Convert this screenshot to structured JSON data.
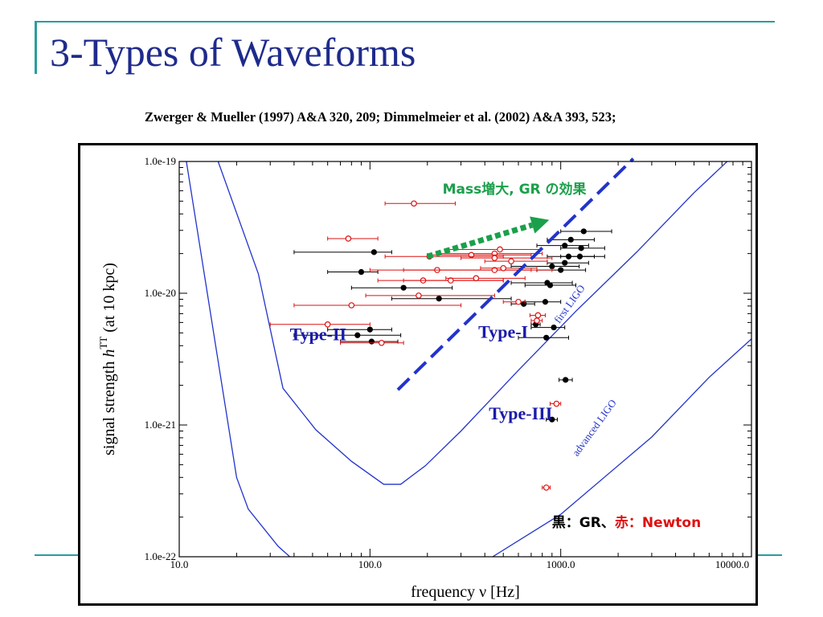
{
  "slide": {
    "title": "3-Types of Waveforms",
    "citation": "Zwerger & Mueller (1997) A&A 320, 209;   Dimmelmeier et al. (2002) A&A 393, 523;",
    "title_color": "#1e2b8c",
    "rule_color": "#2a9d9d"
  },
  "chart_data": {
    "type": "scatter",
    "xlabel": "frequency ν [Hz]",
    "ylabel_prefix": "signal strength ",
    "ylabel_var": "h",
    "ylabel_sup": "TT",
    "ylabel_suffix": " (at 10 kpc)",
    "xscale": "log",
    "yscale": "log",
    "xlim": [
      10,
      10000
    ],
    "ylim": [
      1e-22,
      1e-19
    ],
    "xticks": [
      {
        "value": 10,
        "label": "10.0"
      },
      {
        "value": 100,
        "label": "100.0"
      },
      {
        "value": 1000,
        "label": "1000.0"
      },
      {
        "value": 10000,
        "label": "10000.0"
      }
    ],
    "yticks": [
      {
        "value": 1e-22,
        "label": "1.0e-22"
      },
      {
        "value": 1e-21,
        "label": "1.0e-21"
      },
      {
        "value": 1e-20,
        "label": "1.0e-20"
      },
      {
        "value": 1e-19,
        "label": "1.0e-19"
      }
    ],
    "grid": false,
    "colors": {
      "gr": "#000000",
      "newton": "#dd1111",
      "curve": "#2233cc",
      "annotation": "#1a1aaa",
      "mass_arrow": "#1aa04a"
    },
    "curves": [
      {
        "name": "first LIGO",
        "points": [
          [
            16,
            1e-19
          ],
          [
            26,
            1.4e-20
          ],
          [
            35,
            1.9e-21
          ],
          [
            52,
            9.2e-22
          ],
          [
            80,
            5.3e-22
          ],
          [
            118,
            3.55e-22
          ],
          [
            145,
            3.55e-22
          ],
          [
            195,
            4.9e-22
          ],
          [
            300,
            9e-22
          ],
          [
            600,
            2.6e-21
          ],
          [
            1200,
            7.3e-21
          ],
          [
            2500,
            2.05e-20
          ],
          [
            5000,
            5.8e-20
          ],
          [
            8000,
            1.1e-19
          ]
        ]
      },
      {
        "name": "advanced LIGO",
        "points": [
          [
            10.9,
            1e-19
          ],
          [
            20,
            4e-22
          ],
          [
            23,
            2.3e-22
          ],
          [
            33,
            1.2e-22
          ],
          [
            38,
            1e-22
          ]
        ],
        "continuation": [
          [
            440,
            1e-22
          ],
          [
            1000,
            2.1e-22
          ],
          [
            3000,
            8.1e-22
          ],
          [
            6000,
            2.3e-21
          ],
          [
            10000,
            4.5e-21
          ]
        ]
      }
    ],
    "curve_labels": [
      {
        "text": "first LIGO",
        "x": 1150,
        "y": 8e-21,
        "angle": -54
      },
      {
        "text": "advanced LIGO",
        "x": 1550,
        "y": 9.2e-22,
        "angle": -54
      }
    ],
    "series": [
      {
        "name": "GR",
        "marker": "filled-circle",
        "points": [
          {
            "x": 1320,
            "y": 2.95e-20,
            "xlo": 1000,
            "xhi": 1850
          },
          {
            "x": 1130,
            "y": 2.55e-20,
            "xlo": 850,
            "xhi": 1500
          },
          {
            "x": 1280,
            "y": 2.2e-20,
            "xlo": 1000,
            "xhi": 1700
          },
          {
            "x": 1050,
            "y": 2.3e-20,
            "xlo": 750,
            "xhi": 1400
          },
          {
            "x": 1100,
            "y": 1.9e-20,
            "xlo": 850,
            "xhi": 1500
          },
          {
            "x": 1260,
            "y": 1.9e-20,
            "xlo": 1000,
            "xhi": 1700
          },
          {
            "x": 900,
            "y": 1.6e-20,
            "xlo": 550,
            "xhi": 1250
          },
          {
            "x": 1000,
            "y": 1.5e-20,
            "xlo": 750,
            "xhi": 1350
          },
          {
            "x": 1050,
            "y": 1.7e-20,
            "xlo": 850,
            "xhi": 1400
          },
          {
            "x": 105,
            "y": 2.05e-20,
            "xlo": 40,
            "xhi": 130
          },
          {
            "x": 90,
            "y": 1.45e-20,
            "xlo": 60,
            "xhi": 110
          },
          {
            "x": 150,
            "y": 1.1e-20,
            "xlo": 80,
            "xhi": 270
          },
          {
            "x": 850,
            "y": 1.2e-20,
            "xlo": 550,
            "xhi": 1150
          },
          {
            "x": 880,
            "y": 1.15e-20,
            "xlo": 650,
            "xhi": 1200
          },
          {
            "x": 230,
            "y": 9.1e-21,
            "xlo": 130,
            "xhi": 550
          },
          {
            "x": 640,
            "y": 8.3e-21,
            "xlo": 550,
            "xhi": 730
          },
          {
            "x": 830,
            "y": 8.6e-21,
            "xlo": 650,
            "xhi": 1000
          },
          {
            "x": 740,
            "y": 5.8e-21,
            "xlo": 700,
            "xhi": 780
          },
          {
            "x": 920,
            "y": 5.5e-21,
            "xlo": 700,
            "xhi": 1050
          },
          {
            "x": 100,
            "y": 5.3e-21,
            "xlo": 60,
            "xhi": 130
          },
          {
            "x": 86,
            "y": 4.8e-21,
            "xlo": 40,
            "xhi": 145
          },
          {
            "x": 102,
            "y": 4.3e-21,
            "xlo": 70,
            "xhi": 140
          },
          {
            "x": 840,
            "y": 4.6e-21,
            "xlo": 600,
            "xhi": 1100
          },
          {
            "x": 1060,
            "y": 2.2e-21,
            "xlo": 980,
            "xhi": 1150
          },
          {
            "x": 900,
            "y": 1.1e-21,
            "xlo": 840,
            "xhi": 960
          }
        ]
      },
      {
        "name": "Newton",
        "marker": "open-circle",
        "points": [
          {
            "x": 170,
            "y": 4.8e-20,
            "xlo": 120,
            "xhi": 280
          },
          {
            "x": 77,
            "y": 2.6e-20,
            "xlo": 60,
            "xhi": 110
          },
          {
            "x": 480,
            "y": 2.15e-20,
            "xlo": 260,
            "xhi": 780
          },
          {
            "x": 450,
            "y": 2e-20,
            "xlo": 230,
            "xhi": 800
          },
          {
            "x": 340,
            "y": 1.95e-20,
            "xlo": 200,
            "xhi": 700
          },
          {
            "x": 205,
            "y": 1.9e-20,
            "xlo": 120,
            "xhi": 500
          },
          {
            "x": 450,
            "y": 1.85e-20,
            "xlo": 300,
            "xhi": 900
          },
          {
            "x": 550,
            "y": 1.75e-20,
            "xlo": 400,
            "xhi": 850
          },
          {
            "x": 225,
            "y": 1.5e-20,
            "xlo": 100,
            "xhi": 900
          },
          {
            "x": 450,
            "y": 1.5e-20,
            "xlo": 150,
            "xhi": 700
          },
          {
            "x": 500,
            "y": 1.55e-20,
            "xlo": 380,
            "xhi": 750
          },
          {
            "x": 190,
            "y": 1.25e-20,
            "xlo": 110,
            "xhi": 500
          },
          {
            "x": 265,
            "y": 1.25e-20,
            "xlo": 150,
            "xhi": 500
          },
          {
            "x": 360,
            "y": 1.3e-20,
            "xlo": 250,
            "xhi": 650
          },
          {
            "x": 180,
            "y": 9.6e-21,
            "xlo": 95,
            "xhi": 450
          },
          {
            "x": 80,
            "y": 8.1e-21,
            "xlo": 40,
            "xhi": 300
          },
          {
            "x": 600,
            "y": 8.6e-21,
            "xlo": 500,
            "xhi": 650
          },
          {
            "x": 760,
            "y": 6.8e-21,
            "xlo": 690,
            "xhi": 830
          },
          {
            "x": 750,
            "y": 6.2e-21,
            "xlo": 700,
            "xhi": 800
          },
          {
            "x": 60,
            "y": 5.8e-21,
            "xlo": 30,
            "xhi": 100
          },
          {
            "x": 115,
            "y": 4.2e-21,
            "xlo": 70,
            "xhi": 150
          },
          {
            "x": 950,
            "y": 1.45e-21,
            "xlo": 880,
            "xhi": 1000
          },
          {
            "x": 840,
            "y": 3.35e-22,
            "xlo": 800,
            "xhi": 880
          }
        ]
      }
    ],
    "annotations": [
      {
        "text": "Type-II",
        "x": 38,
        "y": 4.4e-21
      },
      {
        "text": "Type-I",
        "x": 370,
        "y": 4.6e-21
      },
      {
        "text": "Type-III",
        "x": 420,
        "y": 1.1e-21
      }
    ],
    "mass_label": "Mass増大, GR の効果",
    "mass_label_pos": {
      "x": 240,
      "y": 5.7e-20
    },
    "mass_arrow": {
      "from": [
        200,
        1.9e-20
      ],
      "to": [
        870,
        3.6e-20
      ]
    },
    "divider_line": {
      "from": [
        140,
        1.85e-21
      ],
      "to": [
        2400,
        1.05e-19
      ]
    },
    "legend_note": {
      "gr_text": "黒：GR、",
      "newton_text": "赤：Newton",
      "x": 900,
      "y": 1.68e-22
    }
  }
}
